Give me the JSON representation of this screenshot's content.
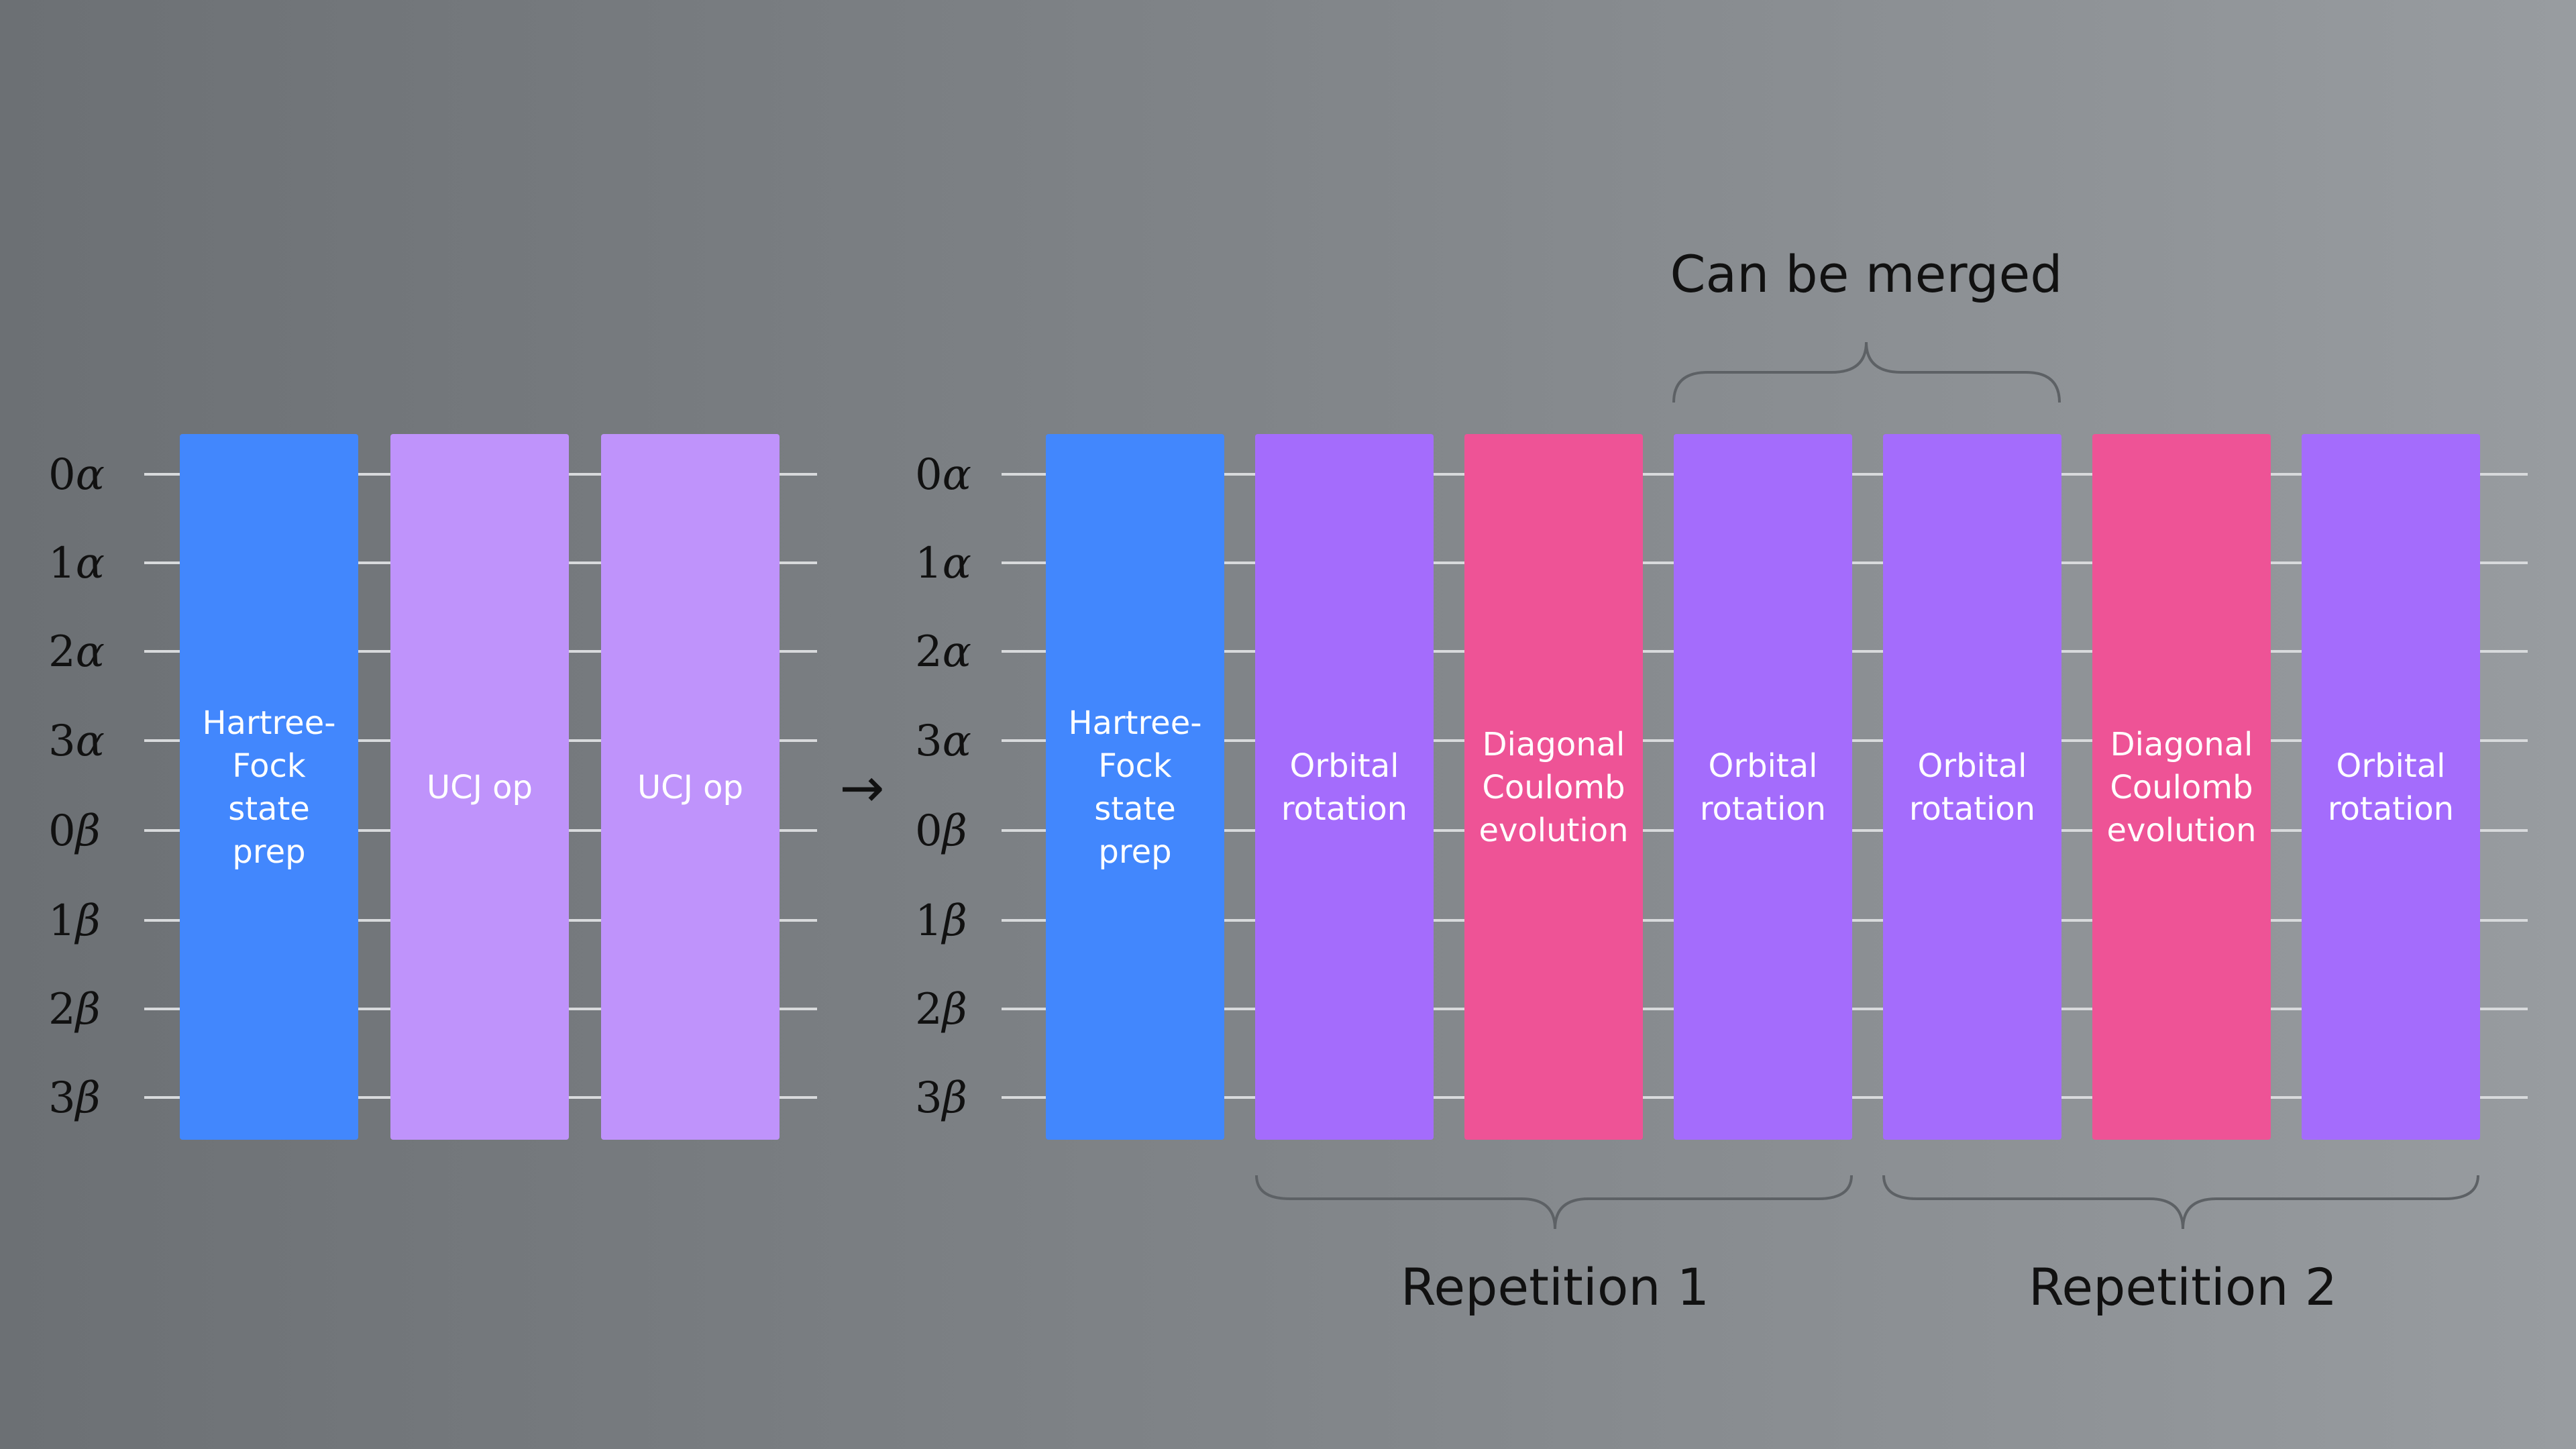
{
  "colors": {
    "hf": "#4287fd",
    "ucj": "#bf93fb",
    "orbital": "#a46cfc",
    "coulomb": "#ee5396",
    "wire": "#d8dadc",
    "brace": "#5d6165"
  },
  "qubit_labels": [
    {
      "num": "0",
      "sym": "α"
    },
    {
      "num": "1",
      "sym": "α"
    },
    {
      "num": "2",
      "sym": "α"
    },
    {
      "num": "3",
      "sym": "α"
    },
    {
      "num": "0",
      "sym": "β"
    },
    {
      "num": "1",
      "sym": "β"
    },
    {
      "num": "2",
      "sym": "β"
    },
    {
      "num": "3",
      "sym": "β"
    }
  ],
  "arrow": "→",
  "left_blocks": [
    {
      "kind": "hf",
      "lines": [
        "Hartree-",
        "Fock",
        "state",
        "prep"
      ]
    },
    {
      "kind": "ucj",
      "lines": [
        "UCJ op"
      ]
    },
    {
      "kind": "ucj",
      "lines": [
        "UCJ op"
      ]
    }
  ],
  "right_blocks": [
    {
      "kind": "hf",
      "lines": [
        "Hartree-",
        "Fock",
        "state",
        "prep"
      ]
    },
    {
      "kind": "orbital",
      "lines": [
        "Orbital",
        "rotation"
      ]
    },
    {
      "kind": "coulomb",
      "lines": [
        "Diagonal",
        "Coulomb",
        "evolution"
      ]
    },
    {
      "kind": "orbital",
      "lines": [
        "Orbital",
        "rotation"
      ]
    },
    {
      "kind": "orbital",
      "lines": [
        "Orbital",
        "rotation"
      ]
    },
    {
      "kind": "coulomb",
      "lines": [
        "Diagonal",
        "Coulomb",
        "evolution"
      ]
    },
    {
      "kind": "orbital",
      "lines": [
        "Orbital",
        "rotation"
      ]
    }
  ],
  "captions": {
    "merged": "Can be merged",
    "rep1": "Repetition 1",
    "rep2": "Repetition 2"
  }
}
